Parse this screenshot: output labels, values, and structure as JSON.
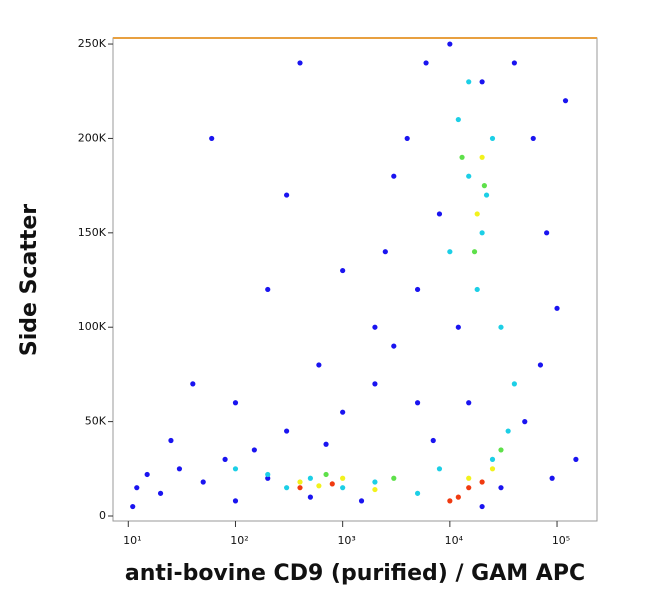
{
  "chart_data": {
    "type": "scatter",
    "x_label": "anti-bovine CD9 (purified) / GAM APC",
    "y_label": "Side Scatter",
    "x_log": true,
    "xlim": [
      7.2,
      236000
    ],
    "ylim": [
      -2650,
      253200
    ],
    "xticks": [
      {
        "value": 10,
        "label": "10¹"
      },
      {
        "value": 100,
        "label": "10²"
      },
      {
        "value": 1000,
        "label": "10³"
      },
      {
        "value": 10000,
        "label": "10⁴"
      },
      {
        "value": 100000,
        "label": "10⁵"
      }
    ],
    "yticks": [
      0,
      {
        "value": 50000,
        "label": "50K"
      },
      {
        "value": 100000,
        "label": "100K"
      },
      {
        "value": 150000,
        "label": "150K"
      },
      {
        "value": 200000,
        "label": "200K"
      },
      {
        "value": 250000,
        "label": "250K"
      }
    ],
    "series": [
      {
        "color": "#1a14f0",
        "x": [
          12,
          15,
          20,
          30,
          50,
          80,
          100,
          150,
          200,
          300,
          500,
          700,
          1000,
          1500,
          2000,
          3000,
          5000,
          4000,
          6000,
          8000,
          3000,
          2500,
          10000,
          12000,
          15000,
          20000,
          40000,
          60000,
          80000,
          100000,
          70000,
          50000,
          150000,
          120000,
          5000,
          7000,
          600,
          200,
          60,
          100,
          40,
          300,
          1000,
          20000,
          30000,
          90000,
          11,
          25,
          400,
          2000
        ],
        "y": [
          15000,
          22000,
          12000,
          25000,
          18000,
          30000,
          8000,
          35000,
          20000,
          45000,
          10000,
          38000,
          55000,
          8000,
          70000,
          90000,
          120000,
          200000,
          240000,
          160000,
          180000,
          140000,
          250000,
          100000,
          60000,
          230000,
          240000,
          200000,
          150000,
          110000,
          80000,
          50000,
          30000,
          220000,
          60000,
          40000,
          80000,
          120000,
          200000,
          60000,
          70000,
          170000,
          130000,
          5000,
          15000,
          20000,
          5000,
          40000,
          240000,
          100000
        ]
      },
      {
        "color": "#1ccfe6",
        "x": [
          15000,
          20000,
          25000,
          18000,
          12000,
          30000,
          40000,
          35000,
          500,
          1000,
          2000,
          200,
          5000,
          100,
          300,
          8000,
          25000,
          15000,
          10000,
          22000
        ],
        "y": [
          180000,
          150000,
          200000,
          120000,
          210000,
          100000,
          70000,
          45000,
          20000,
          15000,
          18000,
          22000,
          12000,
          25000,
          15000,
          25000,
          30000,
          230000,
          140000,
          170000
        ]
      },
      {
        "color": "#5ee04a",
        "x": [
          17000,
          21000,
          700,
          3000,
          30000,
          13000
        ],
        "y": [
          140000,
          175000,
          22000,
          20000,
          35000,
          190000
        ]
      },
      {
        "color": "#f2f21c",
        "x": [
          18000,
          20000,
          600,
          1000,
          400,
          2000,
          15000,
          25000
        ],
        "y": [
          160000,
          190000,
          16000,
          20000,
          18000,
          14000,
          20000,
          25000
        ]
      },
      {
        "color": "#f03a10",
        "x": [
          800,
          12000,
          15000,
          20000,
          10000,
          400
        ],
        "y": [
          17000,
          10000,
          15000,
          18000,
          8000,
          15000
        ]
      }
    ]
  }
}
